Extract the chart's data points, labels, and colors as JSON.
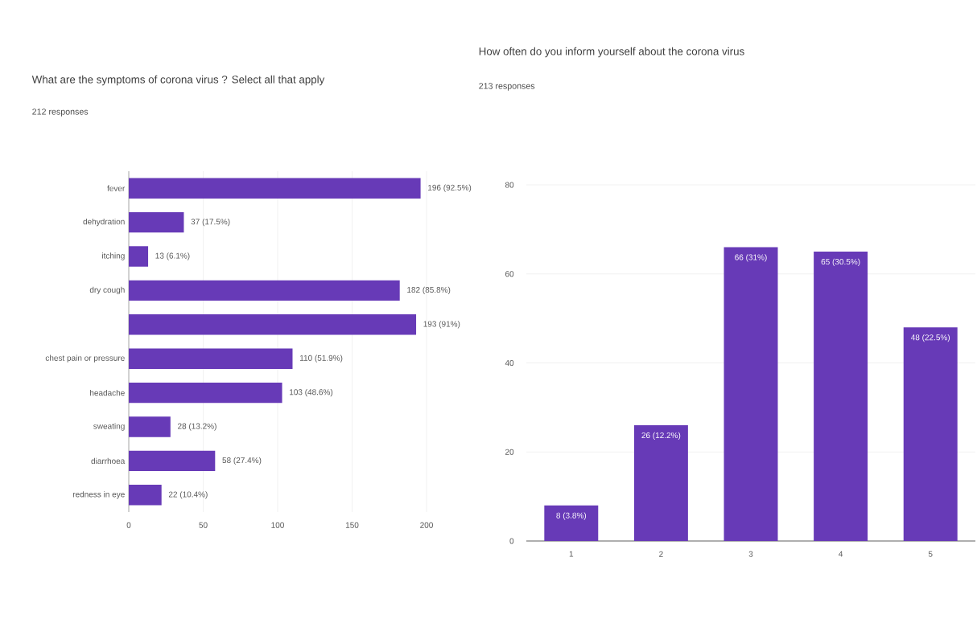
{
  "chart_data": [
    {
      "type": "bar",
      "orientation": "horizontal",
      "title": "What are the symptoms of corona virus ? Select all that apply",
      "subtitle": "212 responses",
      "categories": [
        "fever",
        "dehydration",
        "itching",
        "dry cough",
        null,
        "chest pain or pressure",
        "headache",
        "sweating",
        "diarrhoea",
        "redness in eye"
      ],
      "values": [
        196,
        37,
        13,
        182,
        193,
        110,
        103,
        28,
        58,
        22
      ],
      "value_labels": [
        "196 (92.5%)",
        "37 (17.5%)",
        "13 (6.1%)",
        "182 (85.8%)",
        "193 (91%)",
        "110 (51.9%)",
        "103 (48.6%)",
        "28 (13.2%)",
        "58 (27.4%)",
        "22 (10.4%)"
      ],
      "color": "#673ab7",
      "xlim": [
        0,
        200
      ],
      "xticks": [
        0,
        50,
        100,
        150,
        200
      ],
      "grid": "x"
    },
    {
      "type": "bar",
      "title": "How often do you inform yourself about the corona virus",
      "subtitle": "213 responses",
      "categories": [
        "1",
        "2",
        "3",
        "4",
        "5"
      ],
      "values": [
        8,
        26,
        66,
        65,
        48
      ],
      "value_labels": [
        "8 (3.8%)",
        "26 (12.2%)",
        "66 (31%)",
        "65 (30.5%)",
        "48 (22.5%)"
      ],
      "color": "#673ab7",
      "ylim": [
        0,
        80
      ],
      "yticks": [
        0,
        20,
        40,
        60,
        80
      ],
      "grid": "y"
    }
  ]
}
